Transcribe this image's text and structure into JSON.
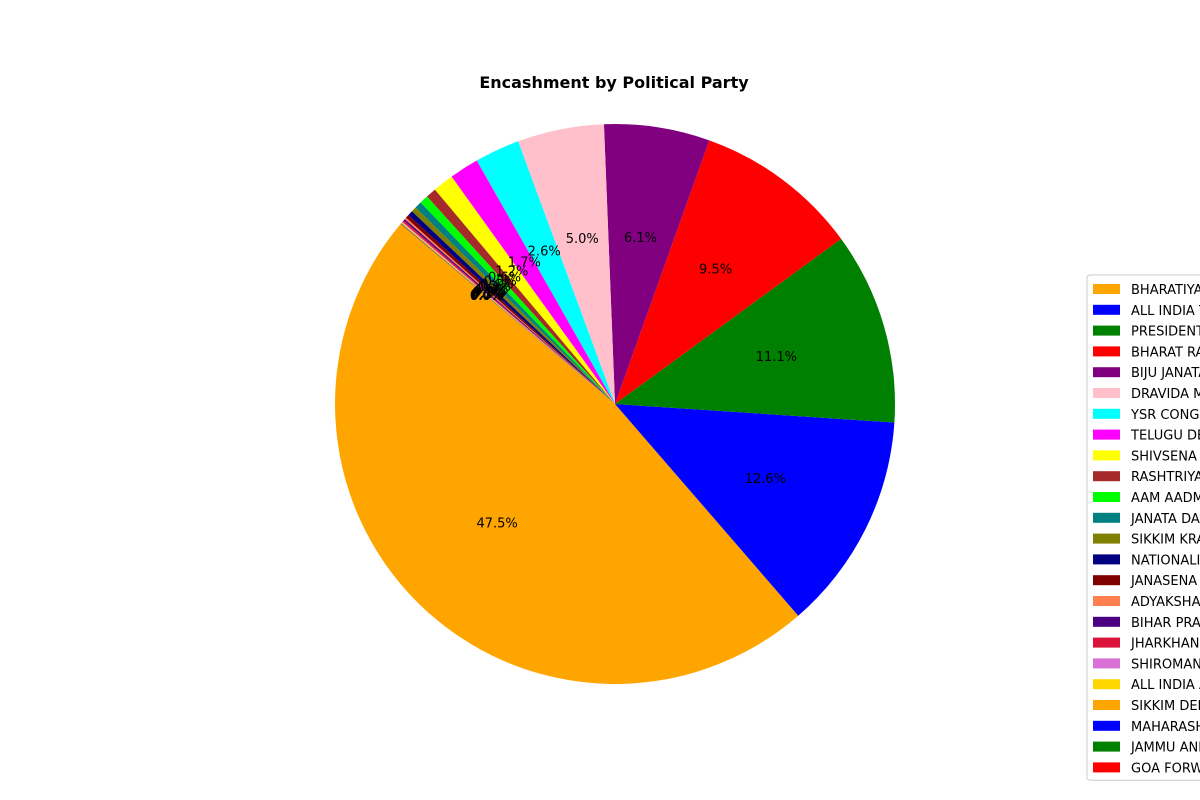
{
  "chart_data": {
    "type": "pie",
    "title": "Encashment by Political Party",
    "start_angle_deg": 140,
    "direction": "counterclockwise",
    "legend_position": "right",
    "slices": [
      {
        "label": "BHARATIYA JANATA PARTY",
        "value": 47.5,
        "pct_label": "47.5%",
        "color": "#FFA500"
      },
      {
        "label": "ALL INDIA TRINAMOOL CONGRESS",
        "value": 12.6,
        "pct_label": "12.6%",
        "color": "#0000FF"
      },
      {
        "label": "PRESIDENT, ALL INDIA CONGRESS COMMITTEE",
        "value": 11.1,
        "pct_label": "11.1%",
        "color": "#008000"
      },
      {
        "label": "BHARAT RASHTRA SAMITHI",
        "value": 9.5,
        "pct_label": "9.5%",
        "color": "#FF0000"
      },
      {
        "label": "BIJU JANATA DAL",
        "value": 6.1,
        "pct_label": "6.1%",
        "color": "#800080"
      },
      {
        "label": "DRAVIDA MUNNETRA KAZHAGAM",
        "value": 5.0,
        "pct_label": "5.0%",
        "color": "#FFC0CB"
      },
      {
        "label": "YSR  CONGRESS PARTY",
        "value": 2.6,
        "pct_label": "2.6%",
        "color": "#00FFFF"
      },
      {
        "label": "TELUGU DESAM PARTY",
        "value": 1.7,
        "pct_label": "1.7%",
        "color": "#FF00FF"
      },
      {
        "label": "SHIVSENA",
        "value": 1.2,
        "pct_label": "1.2%",
        "color": "#FFFF00"
      },
      {
        "label": "RASHTRIYA JANATA DAL",
        "value": 0.6,
        "pct_label": "0.6%",
        "color": "#A52A2A"
      },
      {
        "label": "AAM AADMI PARTY",
        "value": 0.5,
        "pct_label": "0.5%",
        "color": "#00FF00"
      },
      {
        "label": "JANATA DAL ( SECULAR )",
        "value": 0.4,
        "pct_label": "0.4%",
        "color": "#008080"
      },
      {
        "label": "SIKKIM KRANTIKARI MORCHA",
        "value": 0.3,
        "pct_label": "0.3%",
        "color": "#808000"
      },
      {
        "label": "NATIONALIST CONGRESS PARTY",
        "value": 0.3,
        "pct_label": "0.3%",
        "color": "#000080"
      },
      {
        "label": "JANASENA PARTY",
        "value": 0.2,
        "pct_label": "0.2%",
        "color": "#800000"
      },
      {
        "label": "ADYAKSHA SAMAJVADI PARTY",
        "value": 0.1,
        "pct_label": "0.1%",
        "color": "#FF7F50"
      },
      {
        "label": "BIHAR PRADESH JANTA DAL",
        "value": 0.1,
        "pct_label": "0.1%",
        "color": "#4B0082"
      },
      {
        "label": "JHARKHAND MUKTI MORCHA",
        "value": 0.1,
        "pct_label": "0.1%",
        "color": "#DC143C"
      },
      {
        "label": "SHIROMANI AKALI DAL",
        "value": 0.05,
        "pct_label": "0.0%",
        "color": "#DA70D6"
      },
      {
        "label": "ALL INDIA ANNA DRAVIDA MUNNETRA KAZHAGAM",
        "value": 0.05,
        "pct_label": "0.0%",
        "color": "#FFD700"
      },
      {
        "label": "SIKKIM DEMOCRATIC FRONT",
        "value": 0.02,
        "pct_label": "0.0%",
        "color": "#FFA500"
      },
      {
        "label": "MAHARASHTRAWADI GOMNTAK PARTY",
        "value": 0.02,
        "pct_label": "0.0%",
        "color": "#0000FF"
      },
      {
        "label": "JAMMU AND KASHMIR NATIONAL CONFERENCE",
        "value": 0.02,
        "pct_label": "0.0%",
        "color": "#008000"
      },
      {
        "label": "GOA FORWARD PARTY",
        "value": 0.01,
        "pct_label": "0.0%",
        "color": "#FF0000"
      }
    ]
  }
}
